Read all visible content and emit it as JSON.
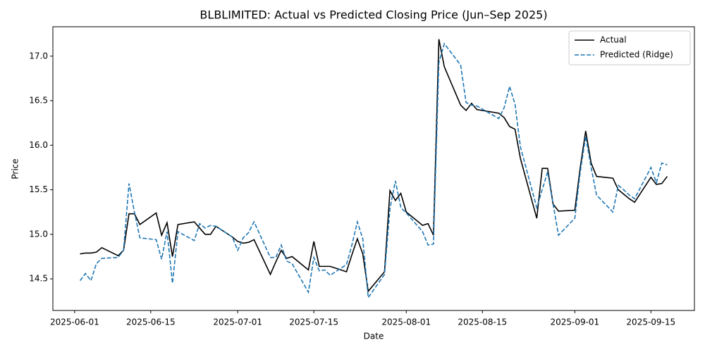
{
  "chart_data": {
    "type": "line",
    "title": "BLBLIMITED: Actual vs Predicted Closing Price (Jun–Sep 2025)",
    "x_label": "Date",
    "y_label": "Price",
    "x": [
      "2025-06-02",
      "2025-06-03",
      "2025-06-04",
      "2025-06-05",
      "2025-06-06",
      "2025-06-09",
      "2025-06-10",
      "2025-06-11",
      "2025-06-12",
      "2025-06-13",
      "2025-06-16",
      "2025-06-17",
      "2025-06-18",
      "2025-06-19",
      "2025-06-20",
      "2025-06-23",
      "2025-06-24",
      "2025-06-25",
      "2025-06-26",
      "2025-06-27",
      "2025-06-30",
      "2025-07-01",
      "2025-07-02",
      "2025-07-03",
      "2025-07-04",
      "2025-07-07",
      "2025-07-08",
      "2025-07-09",
      "2025-07-10",
      "2025-07-11",
      "2025-07-14",
      "2025-07-15",
      "2025-07-16",
      "2025-07-17",
      "2025-07-18",
      "2025-07-21",
      "2025-07-22",
      "2025-07-23",
      "2025-07-24",
      "2025-07-25",
      "2025-07-28",
      "2025-07-29",
      "2025-07-30",
      "2025-07-31",
      "2025-08-01",
      "2025-08-04",
      "2025-08-05",
      "2025-08-06",
      "2025-08-07",
      "2025-08-08",
      "2025-08-11",
      "2025-08-12",
      "2025-08-13",
      "2025-08-14",
      "2025-08-18",
      "2025-08-19",
      "2025-08-20",
      "2025-08-21",
      "2025-08-22",
      "2025-08-25",
      "2025-08-26",
      "2025-08-27",
      "2025-08-28",
      "2025-08-29",
      "2025-09-01",
      "2025-09-02",
      "2025-09-03",
      "2025-09-04",
      "2025-09-05",
      "2025-09-08",
      "2025-09-09",
      "2025-09-10",
      "2025-09-11",
      "2025-09-12",
      "2025-09-15",
      "2025-09-16",
      "2025-09-17",
      "2025-09-18"
    ],
    "series": [
      {
        "name": "Actual",
        "color": "#000000",
        "linestyle": "solid",
        "values": [
          14.78,
          14.79,
          14.79,
          14.8,
          14.85,
          14.76,
          14.82,
          15.23,
          15.23,
          15.11,
          15.24,
          14.99,
          15.13,
          14.75,
          15.11,
          15.14,
          15.07,
          15.0,
          15.0,
          15.09,
          14.97,
          14.92,
          14.9,
          14.91,
          14.94,
          14.55,
          14.69,
          14.82,
          14.73,
          14.75,
          14.6,
          14.92,
          14.64,
          14.64,
          14.64,
          14.58,
          14.77,
          14.95,
          14.78,
          14.36,
          14.58,
          15.49,
          15.38,
          15.46,
          15.25,
          15.1,
          15.12,
          14.99,
          17.19,
          16.88,
          16.45,
          16.39,
          16.47,
          16.4,
          16.36,
          16.31,
          16.21,
          16.18,
          15.85,
          15.18,
          15.74,
          15.74,
          15.34,
          15.26,
          15.27,
          15.75,
          16.16,
          15.8,
          15.65,
          15.63,
          15.5,
          15.45,
          15.4,
          15.36,
          15.64,
          15.56,
          15.57,
          15.65
        ]
      },
      {
        "name": "Predicted (Ridge)",
        "color": "#1f77b4",
        "linestyle": "dashed",
        "values": [
          14.48,
          14.56,
          14.48,
          14.67,
          14.73,
          14.74,
          14.82,
          15.57,
          15.25,
          14.96,
          14.94,
          14.72,
          15.03,
          14.45,
          15.03,
          14.93,
          15.12,
          15.07,
          15.1,
          15.09,
          14.97,
          14.82,
          14.96,
          15.02,
          15.14,
          14.74,
          14.74,
          14.88,
          14.7,
          14.67,
          14.35,
          14.74,
          14.59,
          14.6,
          14.54,
          14.66,
          14.88,
          15.14,
          14.95,
          14.29,
          14.55,
          15.29,
          15.6,
          15.3,
          15.24,
          15.03,
          14.88,
          14.89,
          16.93,
          17.14,
          16.9,
          16.48,
          16.45,
          16.44,
          16.3,
          16.42,
          16.66,
          16.46,
          15.98,
          15.3,
          15.5,
          15.7,
          15.34,
          14.99,
          15.18,
          15.7,
          16.1,
          15.75,
          15.44,
          15.25,
          15.55,
          15.5,
          15.44,
          15.4,
          15.75,
          15.58,
          15.8,
          15.78
        ]
      }
    ],
    "xlim": [
      "2025-05-28",
      "2025-09-23"
    ],
    "xticks": [
      "2025-06-01",
      "2025-06-15",
      "2025-07-01",
      "2025-07-15",
      "2025-08-01",
      "2025-08-15",
      "2025-09-01",
      "2025-09-15"
    ],
    "ylim": [
      14.145,
      17.33
    ],
    "yticks": [
      14.5,
      {
        "value": 15,
        "label": "15.0"
      },
      15.5,
      {
        "value": 16,
        "label": "16.0"
      },
      16.5,
      {
        "value": 17,
        "label": "17.0"
      }
    ],
    "grid": false,
    "legend": "upper right"
  }
}
